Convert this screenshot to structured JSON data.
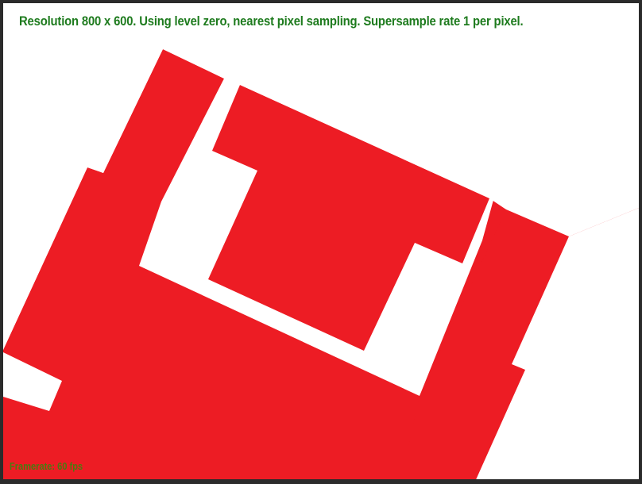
{
  "viewport": {
    "info_text": "Resolution 800 x 600. Using level zero, nearest pixel sampling. Supersample rate 1 per pixel.",
    "framerate_text": "Framerate: 60 fps"
  },
  "colors": {
    "background": "#ffffff",
    "window_border": "#2b2b2b",
    "shape_fill": "#ed1c24",
    "info_text": "#1e7b1e",
    "framerate_text": "#4a7a10"
  },
  "scene": {
    "description_icon": "rotated-red-texture-shape-icon"
  }
}
